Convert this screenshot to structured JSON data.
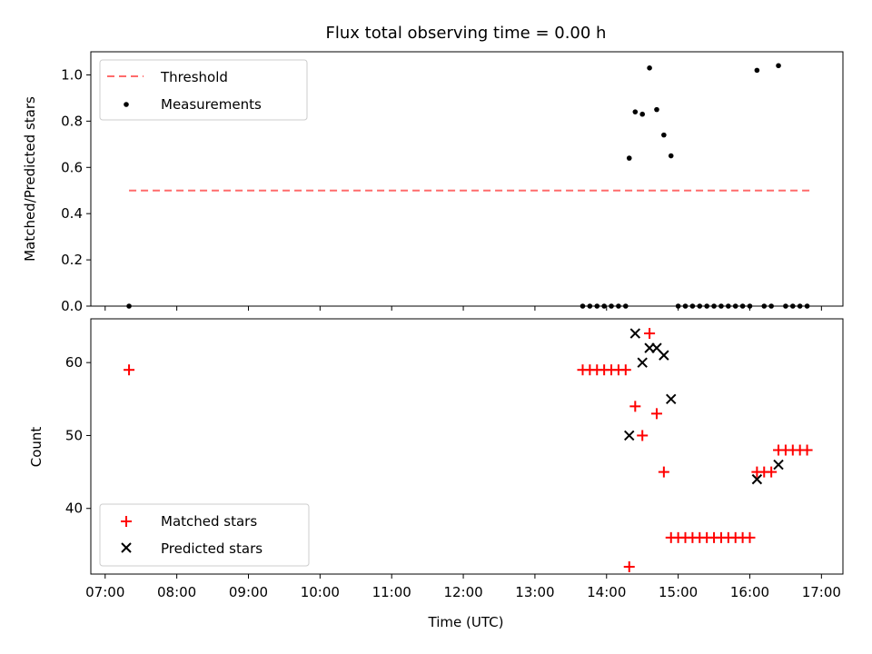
{
  "title": "Flux total observing time = 0.00 h",
  "colors": {
    "threshold": "#ff6b6b",
    "measurement": "#000000",
    "matched": "#ff0000",
    "predicted": "#000000"
  },
  "chart_data": [
    {
      "type": "scatter",
      "panel": "top",
      "ylabel": "Matched/Predicted stars",
      "ylim": [
        0,
        1.1
      ],
      "yticks": [
        "0.0",
        "0.2",
        "0.4",
        "0.6",
        "0.8",
        "1.0"
      ],
      "xlim": [
        "06:48",
        "17:18"
      ],
      "legend": {
        "position": "upper-left",
        "entries": [
          "Threshold",
          "Measurements"
        ]
      },
      "threshold": {
        "name": "Threshold",
        "value": 0.5,
        "x_start": "07:20",
        "x_end": "16:50"
      },
      "series": [
        {
          "name": "Measurements",
          "x": [
            "07:20",
            "13:40",
            "13:46",
            "13:52",
            "13:58",
            "14:04",
            "14:10",
            "14:16",
            "14:19",
            "14:24",
            "14:30",
            "14:36",
            "14:42",
            "14:48",
            "14:54",
            "15:00",
            "15:06",
            "15:12",
            "15:18",
            "15:24",
            "15:30",
            "15:36",
            "15:42",
            "15:48",
            "15:54",
            "16:00",
            "16:06",
            "16:12",
            "16:18",
            "16:24",
            "16:30",
            "16:36",
            "16:42",
            "16:48"
          ],
          "y": [
            0,
            0,
            0,
            0,
            0,
            0,
            0,
            0,
            0.64,
            0.84,
            0.83,
            1.03,
            0.85,
            0.74,
            0.65,
            0,
            0,
            0,
            0,
            0,
            0,
            0,
            0,
            0,
            0,
            0,
            1.02,
            0,
            0,
            1.04,
            0,
            0,
            0,
            0
          ]
        }
      ]
    },
    {
      "type": "scatter",
      "panel": "bottom",
      "ylabel": "Count",
      "xlabel": "Time (UTC)",
      "ylim": [
        31,
        66
      ],
      "yticks": [
        "40",
        "50",
        "60"
      ],
      "xlim": [
        "06:48",
        "17:18"
      ],
      "xticks": [
        "07:00",
        "08:00",
        "09:00",
        "10:00",
        "11:00",
        "12:00",
        "13:00",
        "14:00",
        "15:00",
        "16:00",
        "17:00"
      ],
      "legend": {
        "position": "lower-left",
        "entries": [
          "Matched stars",
          "Predicted stars"
        ]
      },
      "series": [
        {
          "name": "Matched stars",
          "marker": "plus",
          "x": [
            "07:20",
            "13:40",
            "13:46",
            "13:52",
            "13:58",
            "14:04",
            "14:10",
            "14:16",
            "14:19",
            "14:24",
            "14:30",
            "14:36",
            "14:42",
            "14:48",
            "14:54",
            "15:00",
            "15:06",
            "15:12",
            "15:18",
            "15:24",
            "15:30",
            "15:36",
            "15:42",
            "15:48",
            "15:54",
            "16:00",
            "16:06",
            "16:12",
            "16:18",
            "16:24",
            "16:30",
            "16:36",
            "16:42",
            "16:48"
          ],
          "y": [
            59,
            59,
            59,
            59,
            59,
            59,
            59,
            59,
            32,
            54,
            50,
            64,
            53,
            45,
            36,
            36,
            36,
            36,
            36,
            36,
            36,
            36,
            36,
            36,
            36,
            36,
            45,
            45,
            45,
            48,
            48,
            48,
            48,
            48
          ]
        },
        {
          "name": "Predicted stars",
          "marker": "x",
          "x": [
            "14:19",
            "14:24",
            "14:30",
            "14:36",
            "14:42",
            "14:48",
            "14:54",
            "16:06",
            "16:24"
          ],
          "y": [
            50,
            64,
            60,
            62,
            62,
            61,
            55,
            44,
            46
          ]
        }
      ]
    }
  ]
}
